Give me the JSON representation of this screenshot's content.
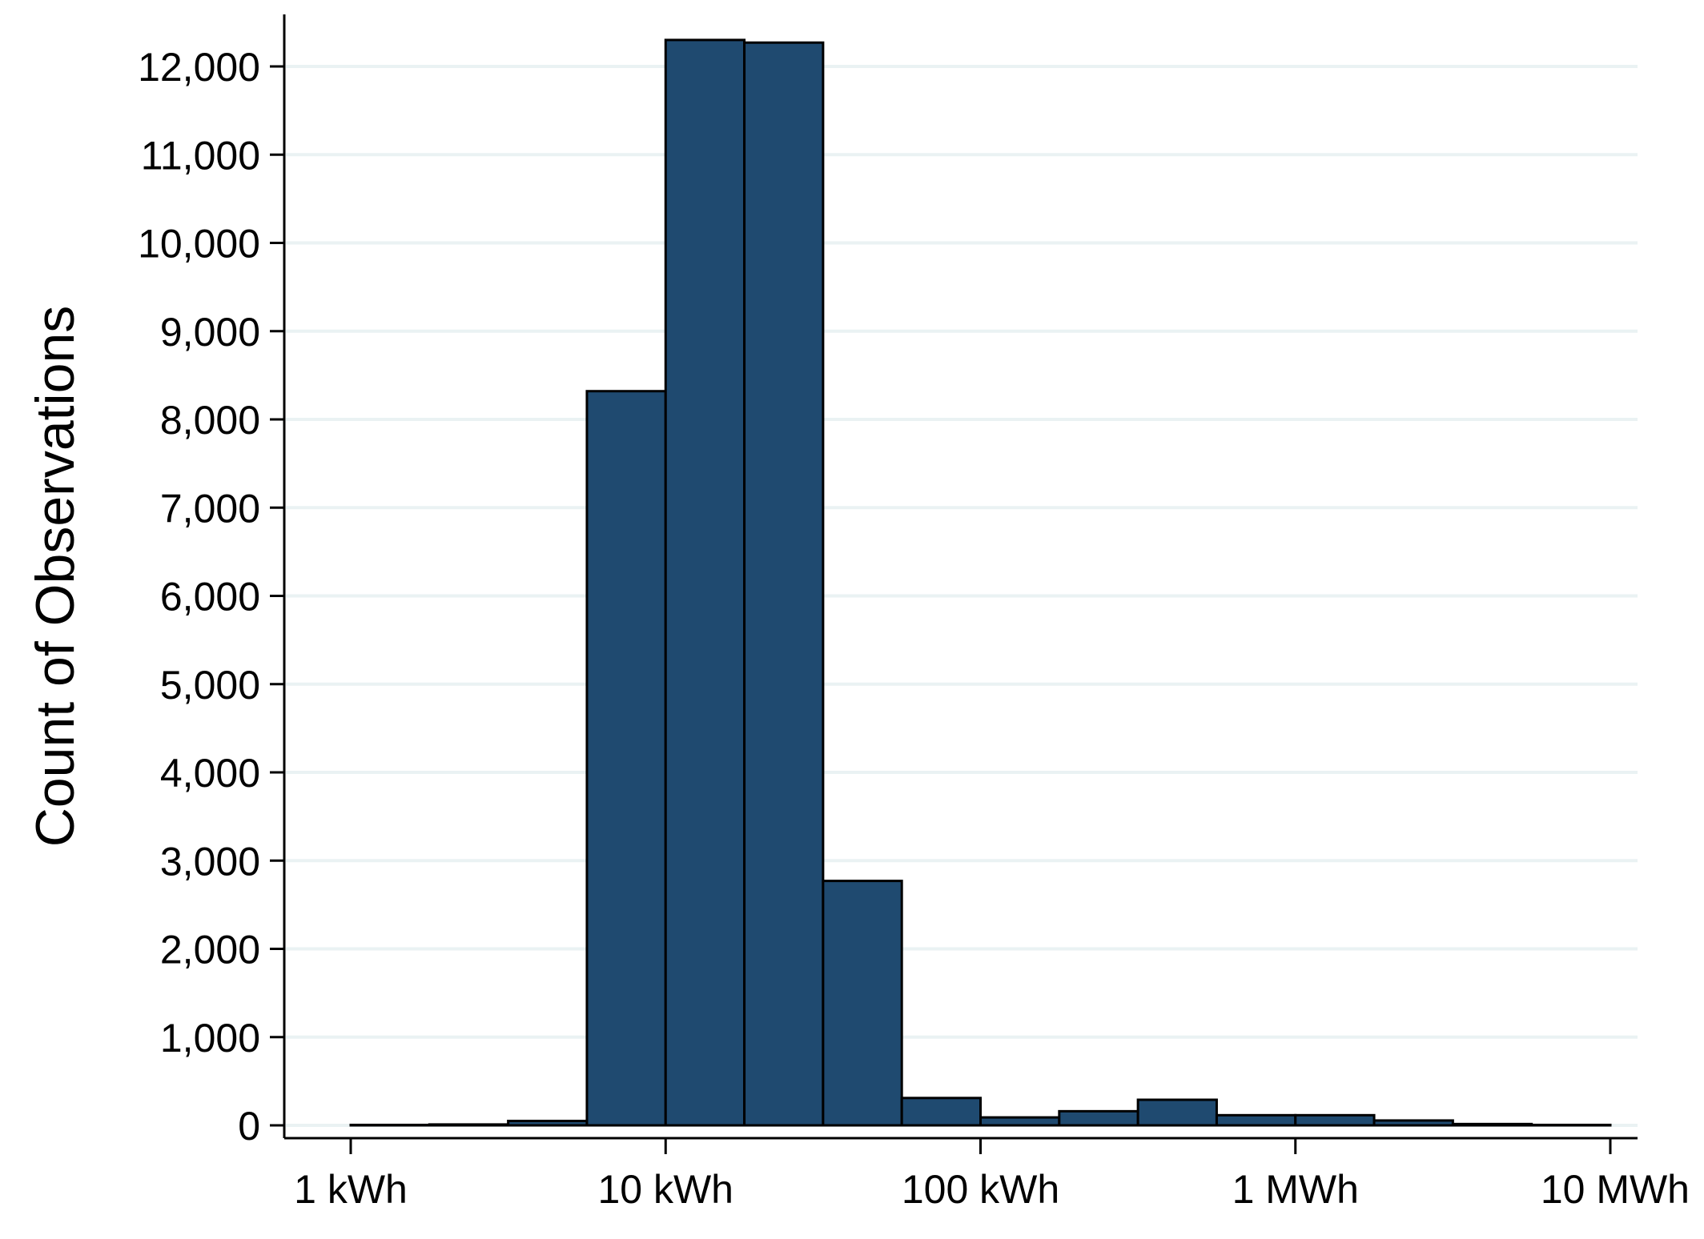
{
  "chart_data": {
    "type": "bar",
    "title": "",
    "xlabel": "",
    "ylabel": "Count of Observations",
    "x_scale": "log10",
    "x_unit": "kWh",
    "xlim_log10_kwh": [
      -0.2,
      5.0
    ],
    "ylim": [
      -110,
      12600
    ],
    "grid": true,
    "bar_color": "#1f4a70",
    "grid_color": "#eaf2f3",
    "yticks": [
      {
        "value": 0,
        "label": "0"
      },
      {
        "value": 1000,
        "label": "1,000"
      },
      {
        "value": 2000,
        "label": "2,000"
      },
      {
        "value": 3000,
        "label": "3,000"
      },
      {
        "value": 4000,
        "label": "4,000"
      },
      {
        "value": 5000,
        "label": "5,000"
      },
      {
        "value": 6000,
        "label": "6,000"
      },
      {
        "value": 7000,
        "label": "7,000"
      },
      {
        "value": 8000,
        "label": "8,000"
      },
      {
        "value": 9000,
        "label": "9,000"
      },
      {
        "value": 10000,
        "label": "10,000"
      },
      {
        "value": 11000,
        "label": "11,000"
      },
      {
        "value": 12000,
        "label": "12,000"
      }
    ],
    "xticks": [
      {
        "log10_kwh": 0,
        "label": "1 kWh"
      },
      {
        "log10_kwh": 1,
        "label": "10 kWh"
      },
      {
        "log10_kwh": 2,
        "label": "100 kWh"
      },
      {
        "log10_kwh": 3,
        "label": "1 MWh"
      },
      {
        "log10_kwh": 4,
        "label": "10 MWh"
      }
    ],
    "bins_log10_kwh_edges": [
      0,
      0.25,
      0.5,
      0.75,
      1.0,
      1.25,
      1.5,
      1.75,
      2.0,
      2.25,
      2.5,
      2.75,
      3.0,
      3.25,
      3.5,
      3.75,
      4.0
    ],
    "values": [
      5,
      10,
      50,
      8320,
      12300,
      12270,
      2770,
      310,
      90,
      160,
      290,
      115,
      115,
      55,
      15,
      5
    ]
  }
}
